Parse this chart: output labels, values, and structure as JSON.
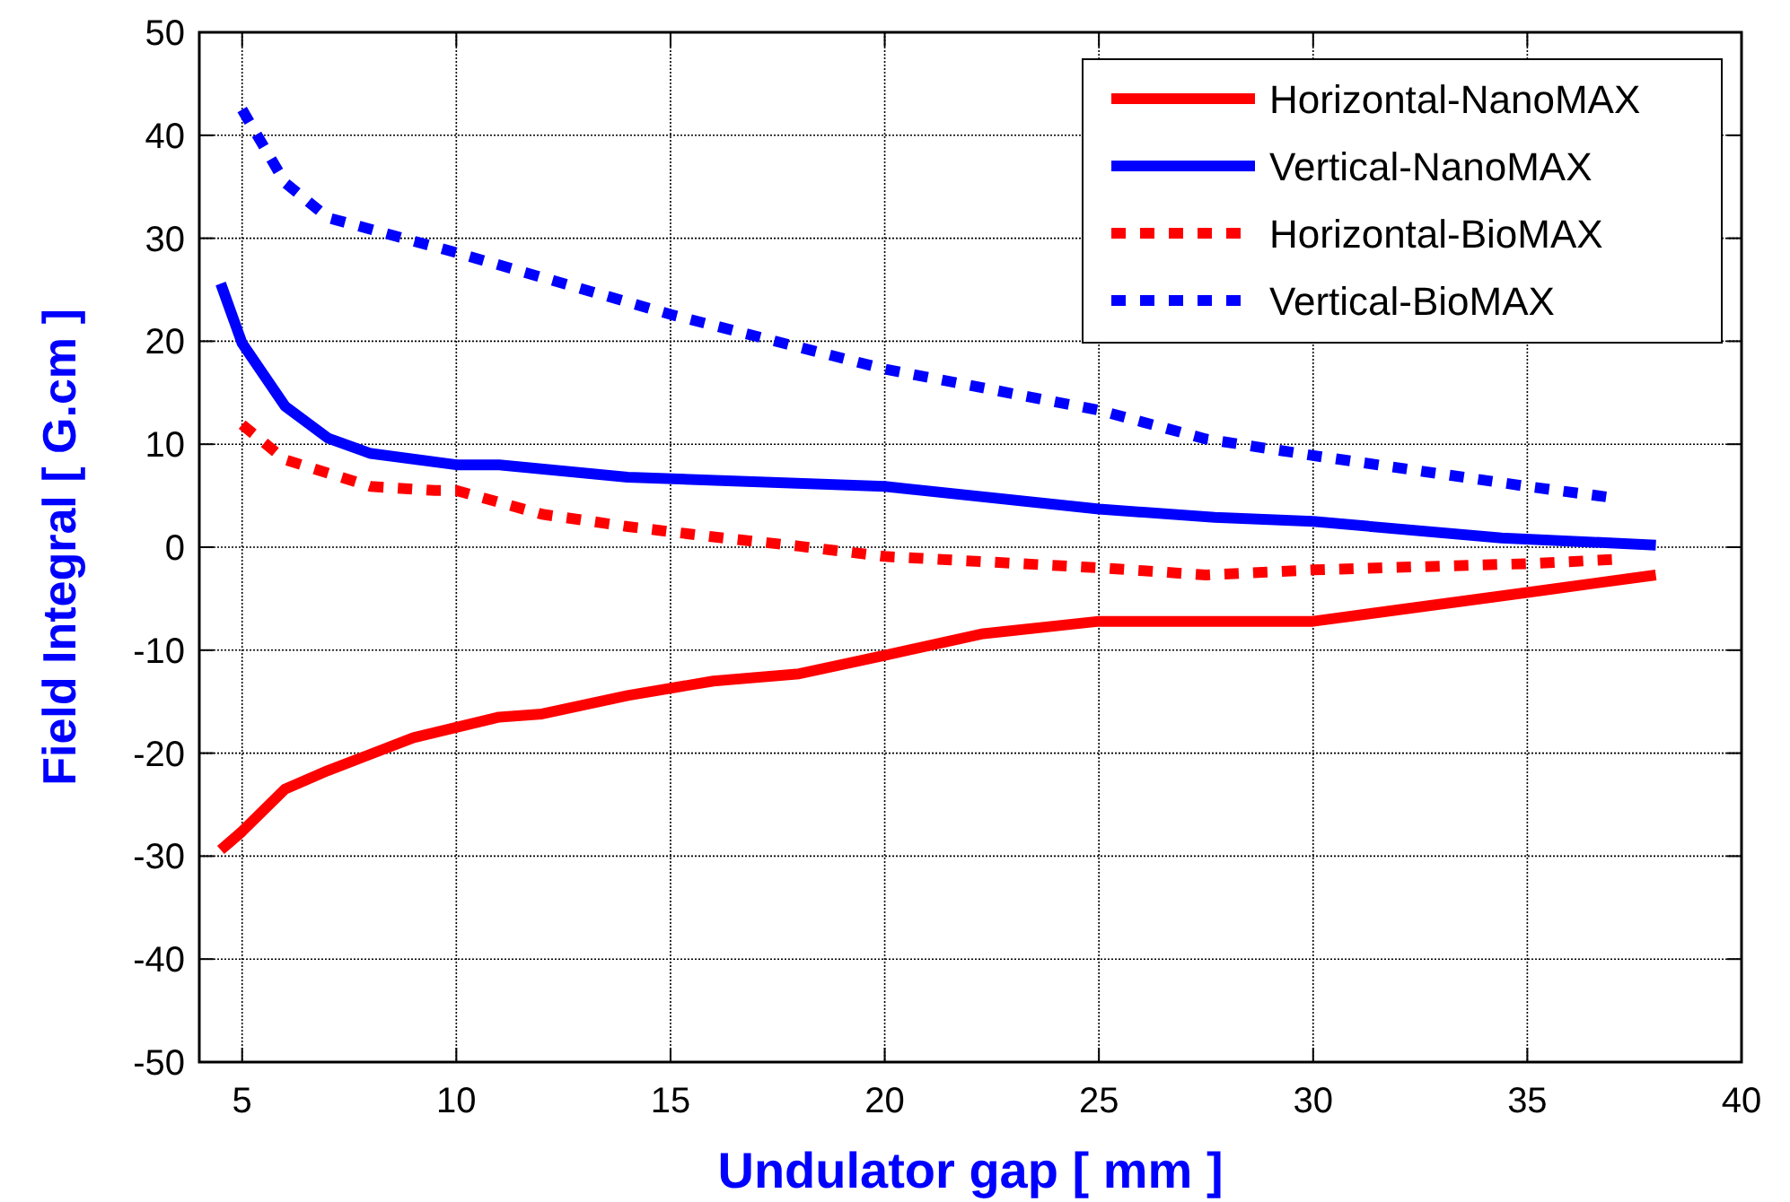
{
  "chart_data": {
    "type": "line",
    "xlabel": "Undulator gap [ mm ]",
    "ylabel": "Field Integral [ G.cm ]",
    "xlim": [
      4,
      40
    ],
    "xticks": [
      5,
      10,
      15,
      20,
      25,
      30,
      35,
      40
    ],
    "ylim": [
      -50,
      50
    ],
    "yticks": [
      -50,
      -40,
      -30,
      -20,
      -10,
      0,
      10,
      20,
      30,
      40,
      50
    ],
    "grid": true,
    "legend": "top right",
    "series": [
      {
        "name": "Horizontal-NanoMAX",
        "color": "#ff0000",
        "line_style": "solid",
        "x": [
          4.5,
          5,
          6,
          7,
          8,
          9,
          10,
          11,
          12,
          14,
          16,
          18,
          20,
          22.3,
          25,
          30,
          35,
          38
        ],
        "values": [
          -29.4,
          -27.6,
          -23.5,
          -21.7,
          -20.1,
          -18.5,
          -17.5,
          -16.5,
          -16.2,
          -14.4,
          -13,
          -12.3,
          -10.5,
          -8.4,
          -7.2,
          -7.2,
          -4.4,
          -2.7
        ]
      },
      {
        "name": "Vertical-NanoMAX",
        "color": "#0000ff",
        "line_style": "solid",
        "x": [
          4.5,
          5,
          6,
          7,
          8,
          10,
          11,
          14,
          20,
          25,
          27.7,
          30,
          34.4,
          38
        ],
        "values": [
          25.6,
          19.8,
          13.7,
          10.6,
          9.1,
          8,
          8,
          6.8,
          5.9,
          3.7,
          2.9,
          2.5,
          0.9,
          0.2
        ]
      },
      {
        "name": "Horizontal-BioMAX",
        "color": "#ff0000",
        "line_style": "dotted",
        "x": [
          5,
          6,
          8,
          9.5,
          10,
          12,
          14,
          16,
          18,
          20,
          25,
          27.5,
          30,
          35,
          37
        ],
        "values": [
          11.9,
          8.5,
          5.9,
          5.5,
          5.5,
          3.2,
          2,
          1,
          0.1,
          -0.9,
          -2,
          -2.7,
          -2.2,
          -1.6,
          -1.2
        ]
      },
      {
        "name": "Vertical-BioMAX",
        "color": "#0000ff",
        "line_style": "dotted",
        "x": [
          5,
          6,
          7,
          10,
          15,
          20,
          25,
          27.5,
          30,
          35,
          37
        ],
        "values": [
          42.5,
          35.4,
          32,
          28.6,
          22.6,
          17.3,
          13.3,
          10.5,
          8.9,
          5.9,
          4.8
        ]
      }
    ]
  }
}
